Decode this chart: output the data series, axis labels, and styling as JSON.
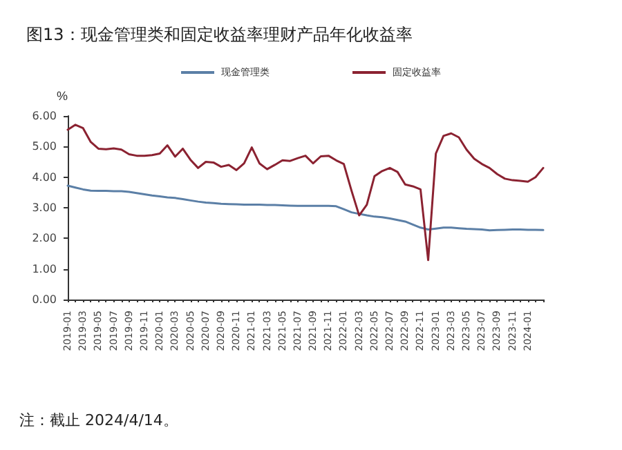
{
  "chart_data": {
    "type": "line",
    "title": "图13：现金管理类和固定收益率理财产品年化收益率",
    "ylabel": "%",
    "annotations": [
      "注：截止 2024/4/14。"
    ],
    "categories": [
      "2019-01",
      null,
      "2019-03",
      null,
      "2019-05",
      null,
      "2019-07",
      null,
      "2019-09",
      null,
      "2019-11",
      null,
      "2020-01",
      null,
      "2020-03",
      null,
      "2020-05",
      null,
      "2020-07",
      null,
      "2020-09",
      null,
      "2020-11",
      null,
      "2021-01",
      null,
      "2021-03",
      null,
      "2021-05",
      null,
      "2021-07",
      null,
      "2021-09",
      null,
      "2021-11",
      null,
      "2022-01",
      null,
      "2022-03",
      null,
      "2022-05",
      null,
      "2022-07",
      null,
      "2022-09",
      null,
      "2022-11",
      null,
      "2023-01",
      null,
      "2023-03",
      null,
      "2023-05",
      null,
      "2023-07",
      null,
      "2023-09",
      null,
      "2023-11",
      null,
      "2024-01",
      null,
      null
    ],
    "series": [
      {
        "name": "现金管理类",
        "color": "#5b7fa6",
        "values": [
          3.72,
          3.66,
          3.6,
          3.56,
          3.55,
          3.55,
          3.54,
          3.54,
          3.52,
          3.48,
          3.44,
          3.4,
          3.37,
          3.34,
          3.32,
          3.28,
          3.24,
          3.2,
          3.17,
          3.15,
          3.13,
          3.12,
          3.11,
          3.1,
          3.1,
          3.1,
          3.09,
          3.09,
          3.08,
          3.07,
          3.06,
          3.06,
          3.06,
          3.06,
          3.06,
          3.05,
          2.95,
          2.85,
          2.8,
          2.75,
          2.71,
          2.69,
          2.65,
          2.6,
          2.55,
          2.45,
          2.35,
          2.29,
          2.32,
          2.35,
          2.35,
          2.33,
          2.31,
          2.3,
          2.29,
          2.26,
          2.27,
          2.28,
          2.29,
          2.29,
          2.28,
          2.28,
          2.27
        ]
      },
      {
        "name": "固定收益率",
        "color": "#8b2231",
        "values": [
          5.55,
          5.71,
          5.6,
          5.15,
          4.93,
          4.91,
          4.94,
          4.9,
          4.75,
          4.7,
          4.7,
          4.72,
          4.77,
          5.04,
          4.67,
          4.93,
          4.57,
          4.3,
          4.5,
          4.48,
          4.34,
          4.4,
          4.23,
          4.45,
          4.97,
          4.45,
          4.26,
          4.4,
          4.55,
          4.53,
          4.62,
          4.7,
          4.45,
          4.68,
          4.7,
          4.55,
          4.43,
          3.56,
          2.75,
          3.1,
          4.03,
          4.2,
          4.3,
          4.17,
          3.76,
          3.7,
          3.6,
          1.29,
          4.77,
          5.35,
          5.43,
          5.3,
          4.9,
          4.6,
          4.43,
          4.3,
          4.1,
          3.95,
          3.9,
          3.88,
          3.85,
          4.0,
          4.3
        ]
      }
    ],
    "ylim": [
      0,
      6
    ],
    "yticks": [
      {
        "value": 0,
        "label": "0.00"
      },
      {
        "value": 1,
        "label": "1.00"
      },
      {
        "value": 2,
        "label": "2.00"
      },
      {
        "value": 3,
        "label": "3.00"
      },
      {
        "value": 4,
        "label": "4.00"
      },
      {
        "value": 5,
        "label": "5.00"
      },
      {
        "value": 6,
        "label": "6.00"
      }
    ],
    "grid": false,
    "legend": "top",
    "marker": "none",
    "line_style": "solid"
  }
}
